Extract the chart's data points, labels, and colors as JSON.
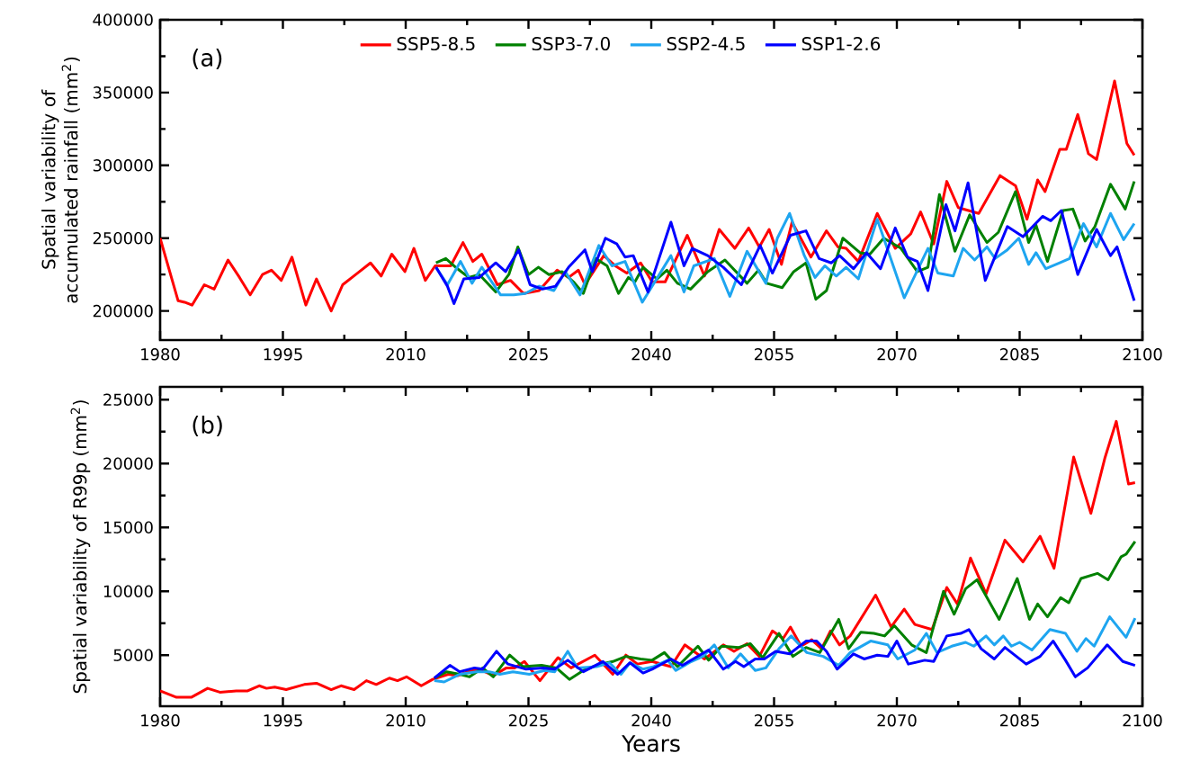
{
  "chart_data": [
    {
      "type": "line",
      "ylabel": "Spatial variability of accumulated rainfall (mm$^{2}$)",
      "xlim": [
        1980,
        2100
      ],
      "xticks": [
        1980,
        1995,
        2010,
        2025,
        2040,
        2055,
        2070,
        2085,
        2100
      ],
      "ylim": [
        180000,
        400000
      ],
      "yticks": [
        200000,
        250000,
        300000,
        350000,
        400000
      ],
      "legend": "top",
      "grid": false,
      "marker": "none",
      "line_style": "solid",
      "annotations": [
        "(a)"
      ],
      "series": [
        {
          "name": "SSP5-8.5",
          "color": "#ff0000",
          "x": [
            1980,
            1982.2,
            1983,
            1983.9,
            1985.4,
            1986.6,
            1988.3,
            1989.7,
            1991,
            1992.5,
            1993.6,
            1994.8,
            1996.1,
            1997.8,
            1999.1,
            2000.9,
            2002.3,
            2003.9,
            2005.7,
            2007,
            2008.3,
            2009.9,
            2011,
            2012.4,
            2013.6,
            2015.5,
            2017,
            2018.2,
            2019.3,
            2021.2,
            2022.8,
            2024.4,
            2026.3,
            2028.5,
            2029.9,
            2031.1,
            2031.9,
            2034.2,
            2035.6,
            2037,
            2038.7,
            2040.1,
            2041.7,
            2044.4,
            2046.5,
            2048.3,
            2050.2,
            2051.9,
            2053.2,
            2054.4,
            2055.9,
            2057.2,
            2059.5,
            2061.4,
            2062.8,
            2063.8,
            2065.3,
            2067.6,
            2069.8,
            2071.7,
            2072.9,
            2074.5,
            2076.1,
            2077.5,
            2080,
            2082.6,
            2084.5,
            2085.9,
            2087.2,
            2088.1,
            2089.9,
            2090.7,
            2092.1,
            2093.4,
            2094.4,
            2096.6,
            2098.1,
            2099
          ],
          "values": [
            250000,
            207000,
            206000,
            204000,
            218000,
            215000,
            235000,
            223000,
            211000,
            225000,
            228000,
            221000,
            237000,
            204000,
            222000,
            200000,
            218000,
            225000,
            233000,
            224000,
            239000,
            227000,
            243000,
            221000,
            231000,
            231000,
            247000,
            234000,
            239000,
            218000,
            221000,
            212000,
            214000,
            228000,
            223000,
            228000,
            218000,
            238000,
            231000,
            226000,
            233000,
            220000,
            220000,
            252000,
            224000,
            256000,
            243000,
            257000,
            244000,
            256000,
            232000,
            261000,
            237000,
            255000,
            244000,
            243000,
            234000,
            267000,
            243000,
            253000,
            268000,
            246000,
            289000,
            271000,
            267000,
            293000,
            286000,
            263000,
            290000,
            282000,
            311000,
            311000,
            335000,
            308000,
            304000,
            358000,
            315000,
            307000
          ]
        },
        {
          "name": "SSP3-7.0",
          "color": "#008000",
          "x": [
            2013.7,
            2014.9,
            2016.1,
            2017.7,
            2019,
            2021,
            2022.6,
            2023.7,
            2025,
            2026.2,
            2027.5,
            2029.1,
            2030.5,
            2031.7,
            2033.2,
            2034.6,
            2036,
            2037.2,
            2038,
            2039,
            2040.7,
            2041.9,
            2043.2,
            2044.8,
            2046.9,
            2049,
            2051.7,
            2053.1,
            2054.1,
            2056,
            2057.4,
            2058.9,
            2060.1,
            2061.4,
            2063.4,
            2065.5,
            2066.7,
            2068.4,
            2070.5,
            2072.5,
            2073.8,
            2075.2,
            2077.1,
            2078.9,
            2081,
            2082.4,
            2084.5,
            2086.1,
            2087,
            2088.4,
            2090.3,
            2091.5,
            2093,
            2094.2,
            2096.1,
            2097.9,
            2099
          ],
          "values": [
            233000,
            236000,
            230000,
            223000,
            225000,
            213000,
            225000,
            244000,
            225000,
            230000,
            225000,
            227000,
            220000,
            212000,
            236000,
            231000,
            212000,
            223000,
            220000,
            230000,
            222000,
            228000,
            219000,
            215000,
            227000,
            235000,
            219000,
            228000,
            219000,
            216000,
            227000,
            233000,
            208000,
            214000,
            250000,
            240000,
            239000,
            250000,
            243000,
            227000,
            230000,
            280000,
            241000,
            266000,
            247000,
            254000,
            282000,
            247000,
            259000,
            234000,
            269000,
            270000,
            248000,
            258000,
            287000,
            270000,
            289000
          ]
        },
        {
          "name": "SSP2-4.5",
          "color": "#1ea5f0",
          "x": [
            2013.7,
            2015.1,
            2016.7,
            2018.1,
            2019.3,
            2021.6,
            2023.2,
            2024.6,
            2026.3,
            2028.1,
            2029.5,
            2031.3,
            2033.6,
            2035.2,
            2036.8,
            2038.9,
            2042.4,
            2044,
            2045.2,
            2047.7,
            2049.6,
            2051.7,
            2054,
            2055.4,
            2056.9,
            2058.7,
            2060,
            2061.2,
            2062.6,
            2063.8,
            2065.3,
            2067.6,
            2070.9,
            2073.8,
            2075,
            2076.9,
            2078.1,
            2079.5,
            2081,
            2082,
            2083.5,
            2084.9,
            2086.1,
            2087,
            2088.2,
            2089.9,
            2091.1,
            2092.8,
            2094.4,
            2096.1,
            2097.7,
            2099
          ],
          "values": [
            230000,
            218000,
            234000,
            219000,
            230000,
            211000,
            211000,
            212000,
            217000,
            214000,
            227000,
            211000,
            245000,
            231000,
            234000,
            206000,
            238000,
            213000,
            231000,
            236000,
            210000,
            241000,
            219000,
            250000,
            267000,
            238000,
            223000,
            231000,
            224000,
            230000,
            222000,
            263000,
            209000,
            243000,
            226000,
            224000,
            243000,
            235000,
            244000,
            236000,
            242000,
            250000,
            232000,
            240000,
            229000,
            233000,
            236000,
            260000,
            244000,
            267000,
            249000,
            260000
          ]
        },
        {
          "name": "SSP1-2.6",
          "color": "#0000ff",
          "x": [
            2013.7,
            2015.1,
            2015.9,
            2017.1,
            2019,
            2021,
            2022.2,
            2023.8,
            2025.2,
            2026.7,
            2028.3,
            2029.9,
            2031.9,
            2032.8,
            2034.4,
            2035.8,
            2036.8,
            2037.8,
            2039.6,
            2042.4,
            2044,
            2045,
            2046.9,
            2048.8,
            2051,
            2053.3,
            2054.8,
            2057,
            2058.9,
            2060.5,
            2062,
            2063,
            2064.7,
            2066.3,
            2068,
            2069.8,
            2071.3,
            2072.5,
            2073.8,
            2076,
            2077.1,
            2078.7,
            2080.8,
            2083.5,
            2085.4,
            2087.8,
            2088.8,
            2090.1,
            2092.1,
            2094.4,
            2096.1,
            2096.9,
            2099
          ],
          "values": [
            230000,
            217000,
            205000,
            222000,
            223000,
            233000,
            227000,
            242000,
            218000,
            215000,
            217000,
            230000,
            242000,
            227000,
            250000,
            246000,
            237000,
            238000,
            213000,
            261000,
            231000,
            243000,
            238000,
            230000,
            218000,
            245000,
            226000,
            252000,
            255000,
            236000,
            233000,
            238000,
            229000,
            240000,
            229000,
            257000,
            237000,
            234000,
            214000,
            273000,
            255000,
            288000,
            221000,
            258000,
            251000,
            265000,
            262000,
            269000,
            225000,
            256000,
            238000,
            244000,
            207000
          ]
        }
      ]
    },
    {
      "type": "line",
      "xlabel": "Years",
      "ylabel": "Spatial variability of R99p (mm$^{2}$)",
      "xlim": [
        1980,
        2100
      ],
      "xticks": [
        1980,
        1995,
        2010,
        2025,
        2040,
        2055,
        2070,
        2085,
        2100
      ],
      "ylim": [
        1000,
        26000
      ],
      "yticks": [
        5000,
        10000,
        15000,
        20000,
        25000
      ],
      "grid": false,
      "marker": "none",
      "line_style": "solid",
      "annotations": [
        "(b)"
      ],
      "series": [
        {
          "color": "#ff0000",
          "x": [
            1980,
            1982,
            1983.8,
            1985.8,
            1987.3,
            1989.3,
            1990.7,
            1992.1,
            1993,
            1994,
            1995.4,
            1997.6,
            1999.1,
            2000.9,
            2002.1,
            2003.7,
            2005.2,
            2006.4,
            2008,
            2009,
            2010.1,
            2011.9,
            2013.3,
            2015.2,
            2016.4,
            2017.6,
            2019,
            2020.7,
            2022.3,
            2023.3,
            2024.5,
            2026.4,
            2028.6,
            2030.2,
            2033.1,
            2035.3,
            2036.9,
            2038.3,
            2040.1,
            2042.4,
            2044.1,
            2046.5,
            2048.8,
            2050.1,
            2051.7,
            2053.2,
            2054.8,
            2056.1,
            2057,
            2058.3,
            2059.6,
            2060.8,
            2061.9,
            2063,
            2064.3,
            2067.4,
            2069.3,
            2070.9,
            2072.2,
            2074.3,
            2076.1,
            2077.4,
            2079,
            2080.9,
            2083.2,
            2085.4,
            2087.5,
            2089.2,
            2091.6,
            2093.7,
            2095.4,
            2096.8,
            2098.3,
            2099.1
          ],
          "values": [
            2200,
            1700,
            1700,
            2400,
            2100,
            2200,
            2200,
            2600,
            2400,
            2500,
            2300,
            2700,
            2800,
            2300,
            2600,
            2300,
            3000,
            2700,
            3200,
            3000,
            3300,
            2600,
            3100,
            3500,
            3400,
            3700,
            3900,
            3400,
            4000,
            4000,
            4500,
            3000,
            4800,
            4000,
            5000,
            3500,
            5000,
            4300,
            4500,
            4100,
            5800,
            4700,
            5800,
            5300,
            5900,
            4900,
            6900,
            6300,
            7200,
            5700,
            6200,
            5500,
            6900,
            5800,
            6500,
            9700,
            7200,
            8600,
            7400,
            7000,
            10300,
            9000,
            12600,
            9800,
            14000,
            12300,
            14300,
            11800,
            20500,
            16100,
            20400,
            23300,
            18400,
            18500
          ]
        },
        {
          "color": "#008000",
          "x": [
            2013.5,
            2015,
            2016.6,
            2017.8,
            2019.4,
            2020.7,
            2022.7,
            2024.3,
            2026.6,
            2028.4,
            2030,
            2031.7,
            2033.3,
            2035.3,
            2036.9,
            2038.7,
            2040.1,
            2041.6,
            2043.2,
            2045.7,
            2047,
            2048.6,
            2050.7,
            2052.1,
            2053.6,
            2055.6,
            2057.3,
            2058.9,
            2060.6,
            2062.9,
            2064.1,
            2065.6,
            2067.2,
            2068.5,
            2069.7,
            2071.8,
            2073.6,
            2075.7,
            2077,
            2078.4,
            2079.8,
            2082.5,
            2084.7,
            2086.2,
            2087.2,
            2088.4,
            2090,
            2091,
            2092.5,
            2094.5,
            2095.8,
            2097.4,
            2098,
            2099.1
          ],
          "values": [
            3200,
            3700,
            3500,
            3300,
            4000,
            3300,
            5000,
            4100,
            4200,
            4000,
            3100,
            3800,
            4200,
            4500,
            4900,
            4700,
            4600,
            5200,
            4100,
            5700,
            4600,
            5700,
            5600,
            5900,
            4800,
            6700,
            4900,
            5600,
            5200,
            7800,
            5500,
            6800,
            6700,
            6500,
            7300,
            5800,
            5200,
            10000,
            8200,
            10200,
            10900,
            7800,
            11000,
            7800,
            9000,
            8000,
            9500,
            9100,
            11000,
            11400,
            10900,
            12700,
            12900,
            13900
          ]
        },
        {
          "color": "#1ea5f0",
          "x": [
            2013.5,
            2014.7,
            2016.6,
            2018.6,
            2020.2,
            2021.5,
            2023.1,
            2025.1,
            2027,
            2028.2,
            2029.8,
            2031,
            2033.3,
            2034.9,
            2036.3,
            2037.4,
            2039,
            2040.3,
            2042,
            2043,
            2044.9,
            2046.3,
            2047.7,
            2049.4,
            2050.9,
            2052.7,
            2054,
            2055.6,
            2057.1,
            2059,
            2061,
            2062.9,
            2064.3,
            2066.8,
            2068.9,
            2070.1,
            2072.2,
            2073.6,
            2074.9,
            2076.7,
            2078.4,
            2079.4,
            2080.9,
            2081.9,
            2083,
            2084,
            2085,
            2086.5,
            2088.7,
            2090.6,
            2092,
            2093.1,
            2094.1,
            2096,
            2098,
            2099.1
          ],
          "values": [
            3000,
            2900,
            3500,
            3700,
            3700,
            3500,
            3700,
            3500,
            3800,
            3700,
            5300,
            4000,
            4100,
            4400,
            3500,
            4400,
            3900,
            4100,
            4600,
            3800,
            4500,
            4900,
            5800,
            4000,
            5100,
            3800,
            4000,
            5500,
            6500,
            5200,
            4900,
            4200,
            5200,
            6100,
            5800,
            4700,
            5400,
            6700,
            5200,
            5700,
            6000,
            5700,
            6500,
            5800,
            6500,
            5700,
            6000,
            5400,
            7000,
            6700,
            5300,
            6300,
            5700,
            8000,
            6400,
            7900
          ]
        },
        {
          "color": "#0000ff",
          "x": [
            2013.5,
            2015.4,
            2016.6,
            2018.4,
            2019.4,
            2021.1,
            2022.5,
            2024.7,
            2026.8,
            2028.2,
            2029.8,
            2031.7,
            2034.1,
            2035.9,
            2037.4,
            2039,
            2040.1,
            2042.4,
            2043.8,
            2047,
            2048.8,
            2050.3,
            2051.3,
            2052.7,
            2053.8,
            2055.2,
            2056.9,
            2058.9,
            2060.2,
            2061.4,
            2062.7,
            2064.7,
            2066,
            2067.6,
            2068.9,
            2070,
            2071.4,
            2073.4,
            2074.5,
            2076.1,
            2077.8,
            2078.8,
            2080.3,
            2081.9,
            2083.2,
            2085.8,
            2087.5,
            2089.1,
            2090.6,
            2091.8,
            2093.3,
            2095.7,
            2097.6,
            2099.1
          ],
          "values": [
            3200,
            4200,
            3700,
            4000,
            3900,
            5300,
            4300,
            3900,
            4000,
            3900,
            4600,
            3700,
            4500,
            3500,
            4400,
            3600,
            3900,
            4700,
            4200,
            5400,
            3900,
            4500,
            4100,
            4700,
            4700,
            5300,
            5100,
            6100,
            6100,
            5300,
            3900,
            5100,
            4700,
            5000,
            4900,
            6100,
            4300,
            4600,
            4500,
            6500,
            6700,
            7000,
            5500,
            4700,
            5600,
            4300,
            4900,
            6100,
            4600,
            3300,
            4000,
            5800,
            4500,
            4200
          ]
        }
      ]
    }
  ]
}
